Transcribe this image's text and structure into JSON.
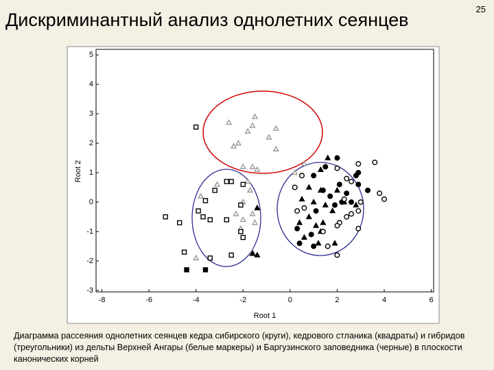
{
  "page_number": "25",
  "title": "Дискриминантный анализ однолетних сеянцев",
  "caption": "Диаграмма рассеяния однолетних сеянцев кедра сибирского (круги), кедрового стланика (квадраты) и гибридов (треугольники) из дельты Верхней Ангары (белые маркеры) и Баргузинского заповедника (черные) в плоскости канонических корней",
  "chart_data": {
    "type": "scatter",
    "x_label": "Root 1",
    "y_label": "Root 2",
    "xlim": [
      -8.25,
      6.1
    ],
    "ylim": [
      -3.05,
      5.19
    ],
    "xticks": [
      -8,
      -6,
      -4,
      -2,
      0,
      2,
      4,
      6
    ],
    "yticks": [
      -3,
      -2,
      -1,
      0,
      1,
      2,
      3,
      4,
      5
    ],
    "grid": false,
    "series": [
      {
        "marker": "triangle",
        "color": "#999999",
        "fill": "#ffffff",
        "x": [
          -2.6,
          -1.8,
          -1.6,
          -1.5,
          -0.6,
          -0.9,
          -0.6,
          -2.2,
          -2.4,
          -2.0,
          -1.6,
          -1.4,
          -1.8,
          -1.7,
          -2.0,
          -1.6,
          -2.3,
          -2.0,
          -1.5,
          -2.1,
          -1.6,
          -4.0,
          -3.8,
          0.6,
          0.2,
          -3.1
        ],
        "y": [
          2.7,
          2.4,
          2.6,
          2.9,
          2.5,
          2.2,
          1.8,
          2.0,
          1.9,
          1.2,
          1.2,
          1.1,
          0.7,
          0.4,
          0.0,
          -0.4,
          -0.4,
          -0.6,
          -0.7,
          -0.9,
          -1.7,
          -1.9,
          0.2,
          1.3,
          1.0,
          0.6
        ]
      },
      {
        "marker": "triangle",
        "color": "#000000",
        "fill": "#000000",
        "x": [
          1.3,
          1.6,
          0.8,
          1.3,
          0.5,
          1.0,
          1.5,
          2.0,
          2.3,
          -1.4,
          0.8,
          1.4,
          1.1,
          1.3,
          0.6,
          1.9,
          1.2,
          -1.6,
          -1.4,
          2.8,
          1.8,
          0.4
        ],
        "y": [
          1.1,
          1.5,
          0.5,
          0.4,
          0.1,
          0.0,
          -0.1,
          0.4,
          0.0,
          -0.2,
          -0.5,
          -0.7,
          -0.8,
          -1.0,
          -1.2,
          -1.4,
          -1.4,
          -1.75,
          -1.8,
          -0.1,
          -0.3,
          -0.7
        ]
      },
      {
        "marker": "square",
        "color": "#000000",
        "fill": "#ffffff",
        "x": [
          -4.0,
          -2.7,
          -2.5,
          -2.0,
          -3.2,
          -3.6,
          -3.9,
          -3.7,
          -4.7,
          -5.3,
          -3.4,
          -2.7,
          -2.1,
          -2.0,
          -3.4,
          -2.5,
          -4.5,
          -2.1
        ],
        "y": [
          2.55,
          0.7,
          0.7,
          0.6,
          0.4,
          0.05,
          -0.3,
          -0.5,
          -0.7,
          -0.5,
          -0.6,
          -0.6,
          -0.1,
          -1.2,
          -1.9,
          -1.8,
          -1.7,
          -1.0
        ]
      },
      {
        "marker": "square",
        "color": "#000000",
        "fill": "#000000",
        "x": [
          -4.4,
          -3.6
        ],
        "y": [
          -2.3,
          -2.3
        ]
      },
      {
        "marker": "circle",
        "color": "#000000",
        "fill": "#000000",
        "x": [
          1.5,
          2.0,
          2.9,
          1.0,
          2.1,
          1.4,
          2.9,
          1.7,
          2.4,
          3.3,
          2.2,
          2.6,
          1.9,
          1.1,
          0.3,
          0.9,
          0.4,
          1.0,
          2.8
        ],
        "y": [
          1.2,
          1.5,
          1.0,
          0.9,
          0.6,
          0.4,
          0.6,
          0.2,
          0.3,
          0.4,
          0.0,
          0.0,
          -0.1,
          -0.3,
          -0.9,
          -1.1,
          -1.4,
          -1.5,
          0.9
        ]
      },
      {
        "marker": "circle",
        "color": "#000000",
        "fill": "#ffffff",
        "x": [
          2.9,
          3.6,
          3.8,
          4.0,
          0.5,
          0.2,
          2.0,
          2.4,
          2.6,
          2.3,
          3.0,
          2.9,
          2.6,
          2.4,
          2.1,
          2.0,
          2.9,
          1.4,
          1.6,
          2.0,
          0.3,
          0.6
        ],
        "y": [
          1.3,
          1.35,
          0.3,
          0.1,
          0.9,
          0.5,
          1.15,
          0.8,
          0.7,
          0.1,
          0.0,
          -0.3,
          -0.4,
          -0.5,
          -0.7,
          -0.8,
          -0.9,
          -1.0,
          -1.5,
          -1.8,
          -0.3,
          -0.2
        ]
      }
    ]
  }
}
